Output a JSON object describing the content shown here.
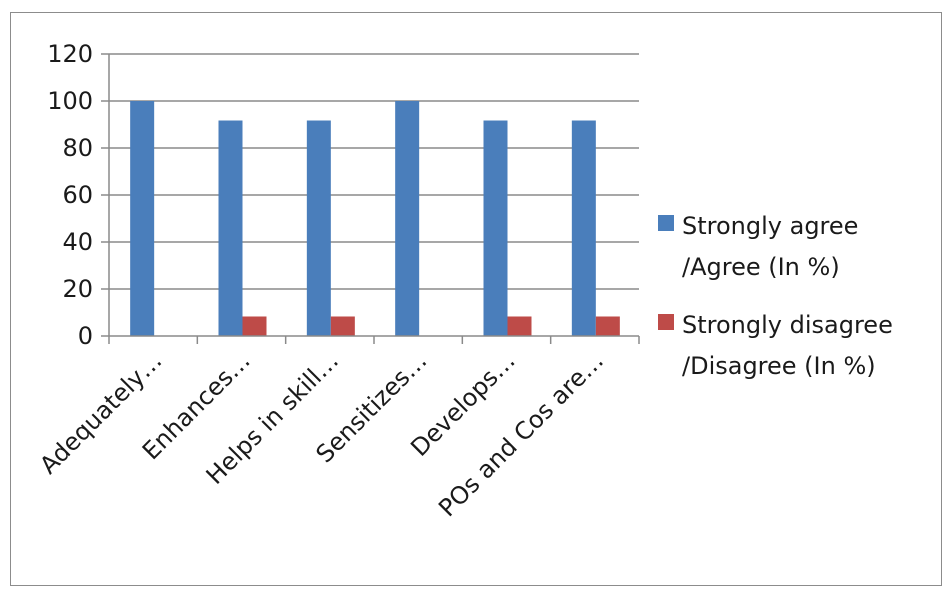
{
  "chart_data": {
    "type": "bar",
    "title": "",
    "xlabel": "",
    "ylabel": "",
    "ylim": [
      0,
      120
    ],
    "yticks": [
      0,
      20,
      40,
      60,
      80,
      100,
      120
    ],
    "grid": true,
    "legend_position": "right",
    "categories": [
      "Adequately…",
      "Enhances…",
      "Helps in skill…",
      "Sensitizes…",
      "Develops…",
      "POs  and Cos are…"
    ],
    "series": [
      {
        "name_lines": [
          "Strongly agree",
          "/Agree (In %)"
        ],
        "color": "#4a7ebb",
        "values": [
          100,
          91.7,
          91.7,
          100,
          91.7,
          91.7
        ]
      },
      {
        "name_lines": [
          "Strongly disagree",
          "/Disagree (In %)"
        ],
        "color": "#be4b48",
        "values": [
          0,
          8.3,
          8.3,
          0,
          8.3,
          8.3
        ]
      }
    ]
  }
}
